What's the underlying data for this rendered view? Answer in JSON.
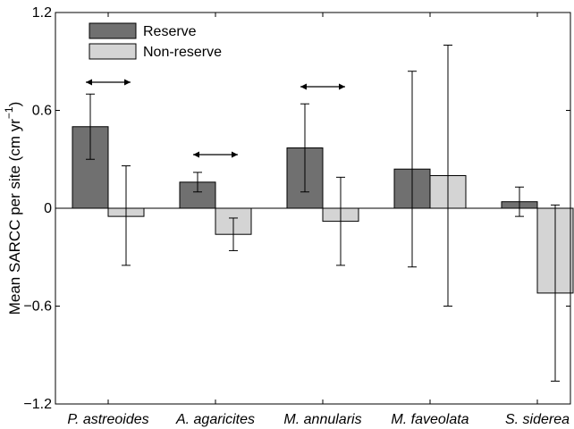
{
  "chart_data": {
    "type": "bar",
    "categories": [
      "P. astreoides",
      "A. agaricites",
      "M. annularis",
      "M. faveolata",
      "S. siderea"
    ],
    "series": [
      {
        "name": "Reserve",
        "color": "#707070",
        "values": [
          0.5,
          0.16,
          0.37,
          0.24,
          0.04
        ],
        "err_low": [
          0.3,
          0.1,
          0.1,
          -0.36,
          -0.05
        ],
        "err_high": [
          0.7,
          0.22,
          0.64,
          0.84,
          0.13
        ]
      },
      {
        "name": "Non-reserve",
        "color": "#d4d4d4",
        "values": [
          -0.05,
          -0.16,
          -0.08,
          0.2,
          -0.52
        ],
        "err_low": [
          -0.35,
          -0.26,
          -0.35,
          -0.6,
          -1.06
        ],
        "err_high": [
          0.26,
          -0.06,
          0.19,
          1.0,
          0.02
        ]
      }
    ],
    "arrows_on_categories": [
      "P. astreoides",
      "A. agaricites",
      "M. annularis"
    ],
    "ylabel_text": "Mean SARCC per site (cm yr",
    "ylabel_superscript": "−1",
    "ylabel_close": ")",
    "xlabel": "",
    "title": "",
    "ylim": [
      -1.2,
      1.2
    ],
    "yticks": [
      -1.2,
      -0.6,
      0,
      0.6,
      1.2
    ],
    "ytick_labels": [
      "−1.2",
      "−0.6",
      "0",
      "0.6",
      "1.2"
    ],
    "legend_position": "top-left",
    "grid": false
  }
}
